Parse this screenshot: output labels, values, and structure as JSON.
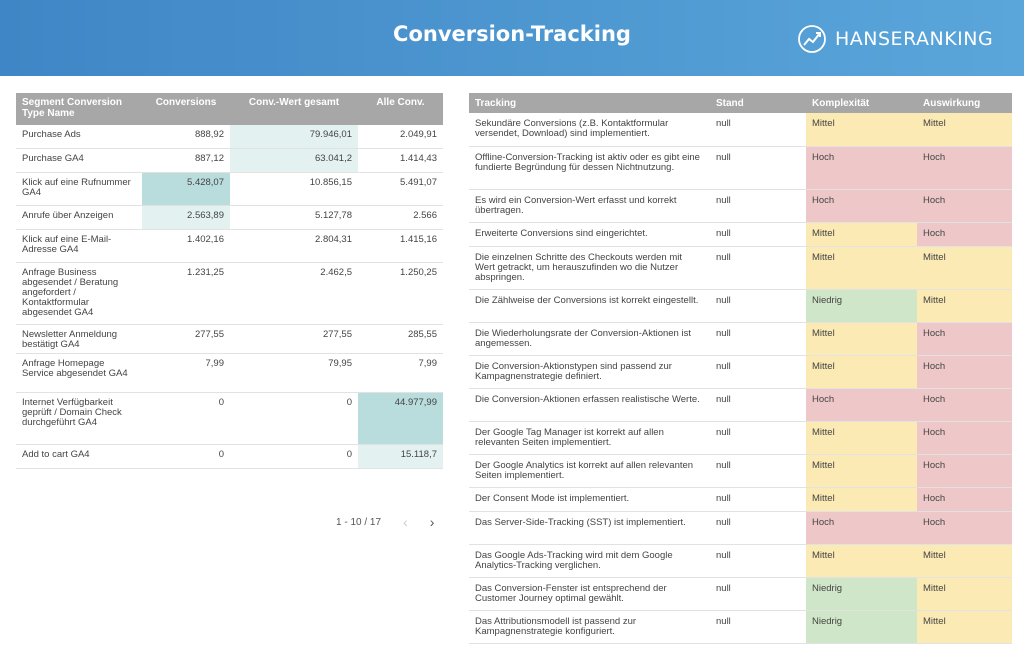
{
  "header": {
    "title": "Conversion-Tracking",
    "logo_text": "HANSERANKING"
  },
  "left_table": {
    "columns": [
      "Segment Conversion Type Name",
      "Conversions",
      "Conv.-Wert gesamt",
      "Alle Conv."
    ],
    "rows": [
      {
        "name": "Purchase Ads",
        "conv": "888,92",
        "wert": "79.946,01",
        "alle": "2.049,91"
      },
      {
        "name": "Purchase GA4",
        "conv": "887,12",
        "wert": "63.041,2",
        "alle": "1.414,43"
      },
      {
        "name": "Klick auf eine Rufnummer GA4",
        "conv": "5.428,07",
        "wert": "10.856,15",
        "alle": "5.491,07"
      },
      {
        "name": "Anrufe über Anzeigen",
        "conv": "2.563,89",
        "wert": "5.127,78",
        "alle": "2.566"
      },
      {
        "name": "Klick auf eine E-Mail-Adresse GA4",
        "conv": "1.402,16",
        "wert": "2.804,31",
        "alle": "1.415,16"
      },
      {
        "name": "Anfrage Business abgesendet / Beratung angefordert / Kontaktformular abgesendet GA4",
        "conv": "1.231,25",
        "wert": "2.462,5",
        "alle": "1.250,25"
      },
      {
        "name": "Newsletter Anmeldung bestätigt GA4",
        "conv": "277,55",
        "wert": "277,55",
        "alle": "285,55"
      },
      {
        "name": "Anfrage Homepage Service abgesendet GA4",
        "conv": "7,99",
        "wert": "79,95",
        "alle": "7,99"
      },
      {
        "name": "Internet Verfügbarkeit geprüft / Domain Check durchgeführt GA4",
        "conv": "0",
        "wert": "0",
        "alle": "44.977,99"
      },
      {
        "name": "Add to cart GA4",
        "conv": "0",
        "wert": "0",
        "alle": "15.118,7"
      }
    ],
    "pagination": "1 - 10 / 17"
  },
  "right_table": {
    "columns": [
      "Tracking",
      "Stand",
      "Komplexität",
      "Auswirkung"
    ],
    "rows": [
      {
        "t": "Sekundäre Conversions (z.B. Kontaktformular versendet, Download) sind implementiert.",
        "s": "null",
        "k": "Mittel",
        "a": "Mittel"
      },
      {
        "t": "Offline-Conversion-Tracking ist aktiv oder es gibt eine fundierte Begründung für dessen Nichtnutzung.",
        "s": "null",
        "k": "Hoch",
        "a": "Hoch"
      },
      {
        "t": "Es wird ein Conversion-Wert erfasst und korrekt übertragen.",
        "s": "null",
        "k": "Hoch",
        "a": "Hoch"
      },
      {
        "t": "Erweiterte Conversions sind eingerichtet.",
        "s": "null",
        "k": "Mittel",
        "a": "Hoch"
      },
      {
        "t": "Die einzelnen Schritte des Checkouts werden mit Wert getrackt, um herauszufinden wo die Nutzer abspringen.",
        "s": "null",
        "k": "Mittel",
        "a": "Mittel"
      },
      {
        "t": "Die Zählweise der Conversions ist korrekt eingestellt.",
        "s": "null",
        "k": "Niedrig",
        "a": "Mittel"
      },
      {
        "t": "Die Wiederholungsrate der Conversion-Aktionen ist angemessen.",
        "s": "null",
        "k": "Mittel",
        "a": "Hoch"
      },
      {
        "t": "Die Conversion-Aktionstypen sind passend zur Kampagnenstrategie definiert.",
        "s": "null",
        "k": "Mittel",
        "a": "Hoch"
      },
      {
        "t": "Die Conversion-Aktionen erfassen realistische Werte.",
        "s": "null",
        "k": "Hoch",
        "a": "Hoch"
      },
      {
        "t": "Der Google Tag Manager ist korrekt auf allen relevanten Seiten implementiert.",
        "s": "null",
        "k": "Mittel",
        "a": "Hoch"
      },
      {
        "t": "Der Google Analytics ist korrekt auf allen relevanten Seiten implementiert.",
        "s": "null",
        "k": "Mittel",
        "a": "Hoch"
      },
      {
        "t": "Der Consent Mode ist implementiert.",
        "s": "null",
        "k": "Mittel",
        "a": "Hoch"
      },
      {
        "t": "Das Server-Side-Tracking (SST) ist implementiert.",
        "s": "null",
        "k": "Hoch",
        "a": "Hoch"
      },
      {
        "t": "Das Google Ads-Tracking wird mit dem Google Analytics-Tracking verglichen.",
        "s": "null",
        "k": "Mittel",
        "a": "Mittel"
      },
      {
        "t": "Das Conversion-Fenster ist entsprechend der Customer Journey optimal gewählt.",
        "s": "null",
        "k": "Niedrig",
        "a": "Mittel"
      },
      {
        "t": "Das Attributionsmodell ist passend zur Kampagnenstrategie konfiguriert.",
        "s": "null",
        "k": "Niedrig",
        "a": "Mittel"
      }
    ]
  }
}
